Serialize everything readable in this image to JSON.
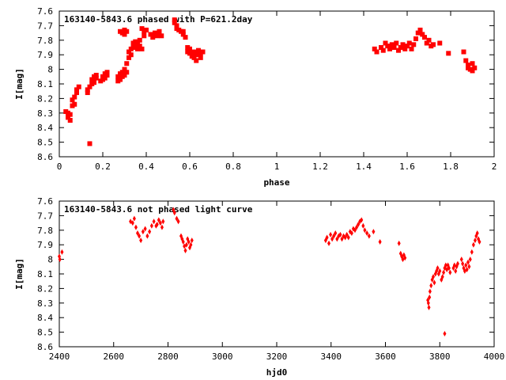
{
  "chart_data": [
    {
      "type": "scatter",
      "title": "163140-5843.6 phased with P=621.2day",
      "xlabel": "phase",
      "ylabel": "I[mag]",
      "xlim": [
        0,
        2
      ],
      "ylim": [
        7.6,
        8.6
      ],
      "y_inverted": true,
      "grid": false,
      "marker_color": "#ff0000",
      "xticks": [
        "0",
        "0.2",
        "0.4",
        "0.6",
        "0.8",
        "1",
        "1.2",
        "1.4",
        "1.6",
        "1.8",
        "2"
      ],
      "yticks": [
        "7.6",
        "7.7",
        "7.8",
        "7.9",
        "8",
        "8.1",
        "8.2",
        "8.3",
        "8.4",
        "8.5",
        "8.6"
      ],
      "points": [
        [
          0.03,
          8.29
        ],
        [
          0.04,
          8.3
        ],
        [
          0.04,
          8.33
        ],
        [
          0.05,
          8.35
        ],
        [
          0.05,
          8.31
        ],
        [
          0.06,
          8.25
        ],
        [
          0.06,
          8.21
        ],
        [
          0.07,
          8.24
        ],
        [
          0.07,
          8.19
        ],
        [
          0.08,
          8.14
        ],
        [
          0.08,
          8.16
        ],
        [
          0.09,
          8.12
        ],
        [
          0.13,
          8.14
        ],
        [
          0.13,
          8.16
        ],
        [
          0.14,
          8.12
        ],
        [
          0.14,
          8.51
        ],
        [
          0.15,
          8.1
        ],
        [
          0.15,
          8.07
        ],
        [
          0.16,
          8.05
        ],
        [
          0.16,
          8.09
        ],
        [
          0.17,
          8.04
        ],
        [
          0.17,
          8.06
        ],
        [
          0.19,
          8.08
        ],
        [
          0.2,
          8.05
        ],
        [
          0.2,
          8.07
        ],
        [
          0.21,
          8.03
        ],
        [
          0.21,
          8.06
        ],
        [
          0.22,
          8.02
        ],
        [
          0.22,
          8.04
        ],
        [
          0.27,
          8.08
        ],
        [
          0.27,
          8.05
        ],
        [
          0.28,
          8.03
        ],
        [
          0.28,
          8.07
        ],
        [
          0.29,
          8.02
        ],
        [
          0.29,
          8.05
        ],
        [
          0.3,
          8.0
        ],
        [
          0.3,
          8.04
        ],
        [
          0.31,
          8.02
        ],
        [
          0.28,
          7.74
        ],
        [
          0.29,
          7.75
        ],
        [
          0.3,
          7.73
        ],
        [
          0.31,
          7.74
        ],
        [
          0.3,
          7.76
        ],
        [
          0.31,
          7.96
        ],
        [
          0.32,
          7.92
        ],
        [
          0.32,
          7.88
        ],
        [
          0.33,
          7.9
        ],
        [
          0.33,
          7.86
        ],
        [
          0.34,
          7.82
        ],
        [
          0.34,
          7.85
        ],
        [
          0.35,
          7.81
        ],
        [
          0.36,
          7.83
        ],
        [
          0.36,
          7.86
        ],
        [
          0.37,
          7.84
        ],
        [
          0.37,
          7.8
        ],
        [
          0.38,
          7.86
        ],
        [
          0.38,
          7.72
        ],
        [
          0.39,
          7.74
        ],
        [
          0.4,
          7.73
        ],
        [
          0.39,
          7.77
        ],
        [
          0.42,
          7.76
        ],
        [
          0.43,
          7.78
        ],
        [
          0.44,
          7.75
        ],
        [
          0.45,
          7.77
        ],
        [
          0.46,
          7.74
        ],
        [
          0.46,
          7.76
        ],
        [
          0.47,
          7.77
        ],
        [
          0.53,
          7.66
        ],
        [
          0.53,
          7.68
        ],
        [
          0.54,
          7.7
        ],
        [
          0.54,
          7.72
        ],
        [
          0.55,
          7.73
        ],
        [
          0.56,
          7.74
        ],
        [
          0.57,
          7.74
        ],
        [
          0.57,
          7.76
        ],
        [
          0.58,
          7.78
        ],
        [
          0.59,
          7.85
        ],
        [
          0.59,
          7.88
        ],
        [
          0.6,
          7.86
        ],
        [
          0.6,
          7.89
        ],
        [
          0.61,
          7.91
        ],
        [
          0.62,
          7.88
        ],
        [
          0.62,
          7.92
        ],
        [
          0.63,
          7.94
        ],
        [
          0.63,
          7.9
        ],
        [
          0.64,
          7.87
        ],
        [
          0.65,
          7.89
        ],
        [
          0.65,
          7.92
        ],
        [
          0.66,
          7.88
        ],
        [
          1.45,
          7.86
        ],
        [
          1.46,
          7.88
        ],
        [
          1.48,
          7.85
        ],
        [
          1.49,
          7.87
        ],
        [
          1.5,
          7.82
        ],
        [
          1.51,
          7.84
        ],
        [
          1.52,
          7.86
        ],
        [
          1.53,
          7.83
        ],
        [
          1.54,
          7.85
        ],
        [
          1.55,
          7.82
        ],
        [
          1.56,
          7.87
        ],
        [
          1.57,
          7.85
        ],
        [
          1.58,
          7.83
        ],
        [
          1.59,
          7.86
        ],
        [
          1.6,
          7.84
        ],
        [
          1.61,
          7.82
        ],
        [
          1.62,
          7.86
        ],
        [
          1.63,
          7.83
        ],
        [
          1.64,
          7.79
        ],
        [
          1.65,
          7.75
        ],
        [
          1.66,
          7.73
        ],
        [
          1.67,
          7.76
        ],
        [
          1.68,
          7.78
        ],
        [
          1.69,
          7.82
        ],
        [
          1.7,
          7.8
        ],
        [
          1.71,
          7.84
        ],
        [
          1.72,
          7.83
        ],
        [
          1.75,
          7.82
        ],
        [
          1.79,
          7.89
        ],
        [
          1.86,
          7.88
        ],
        [
          1.87,
          7.94
        ],
        [
          1.88,
          7.97
        ],
        [
          1.88,
          7.99
        ],
        [
          1.89,
          8.0
        ],
        [
          1.9,
          7.96
        ],
        [
          1.9,
          8.01
        ],
        [
          1.91,
          7.99
        ]
      ]
    },
    {
      "type": "scatter",
      "title": "163140-5843.6 not phased light curve",
      "xlabel": "hjd0",
      "ylabel": "I[mag]",
      "xlim": [
        2400,
        4000
      ],
      "ylim": [
        7.6,
        8.6
      ],
      "y_inverted": true,
      "grid": false,
      "marker_color": "#ff0000",
      "xticks": [
        "2400",
        "2600",
        "2800",
        "3000",
        "3200",
        "3400",
        "3600",
        "3800",
        "4000"
      ],
      "yticks": [
        "7.6",
        "7.7",
        "7.8",
        "7.9",
        "8",
        "8.1",
        "8.2",
        "8.3",
        "8.4",
        "8.5",
        "8.6"
      ],
      "points": [
        [
          2400,
          7.98
        ],
        [
          2402,
          8.0
        ],
        [
          2410,
          7.95
        ],
        [
          2662,
          7.74
        ],
        [
          2670,
          7.75
        ],
        [
          2676,
          7.72
        ],
        [
          2682,
          7.78
        ],
        [
          2688,
          7.82
        ],
        [
          2694,
          7.84
        ],
        [
          2700,
          7.87
        ],
        [
          2708,
          7.81
        ],
        [
          2716,
          7.79
        ],
        [
          2724,
          7.84
        ],
        [
          2732,
          7.81
        ],
        [
          2740,
          7.77
        ],
        [
          2748,
          7.74
        ],
        [
          2756,
          7.77
        ],
        [
          2760,
          7.76
        ],
        [
          2766,
          7.73
        ],
        [
          2772,
          7.75
        ],
        [
          2778,
          7.78
        ],
        [
          2782,
          7.74
        ],
        [
          2820,
          7.66
        ],
        [
          2824,
          7.68
        ],
        [
          2832,
          7.72
        ],
        [
          2838,
          7.74
        ],
        [
          2848,
          7.84
        ],
        [
          2852,
          7.86
        ],
        [
          2856,
          7.88
        ],
        [
          2860,
          7.91
        ],
        [
          2864,
          7.94
        ],
        [
          2868,
          7.9
        ],
        [
          2872,
          7.86
        ],
        [
          2876,
          7.88
        ],
        [
          2880,
          7.92
        ],
        [
          2884,
          7.9
        ],
        [
          2888,
          7.87
        ],
        [
          3380,
          7.87
        ],
        [
          3385,
          7.85
        ],
        [
          3392,
          7.89
        ],
        [
          3398,
          7.83
        ],
        [
          3404,
          7.86
        ],
        [
          3410,
          7.84
        ],
        [
          3416,
          7.82
        ],
        [
          3422,
          7.86
        ],
        [
          3428,
          7.84
        ],
        [
          3434,
          7.83
        ],
        [
          3440,
          7.86
        ],
        [
          3446,
          7.84
        ],
        [
          3452,
          7.85
        ],
        [
          3458,
          7.83
        ],
        [
          3464,
          7.85
        ],
        [
          3470,
          7.81
        ],
        [
          3476,
          7.82
        ],
        [
          3482,
          7.79
        ],
        [
          3488,
          7.8
        ],
        [
          3494,
          7.78
        ],
        [
          3500,
          7.76
        ],
        [
          3506,
          7.74
        ],
        [
          3512,
          7.73
        ],
        [
          3518,
          7.77
        ],
        [
          3524,
          7.8
        ],
        [
          3532,
          7.82
        ],
        [
          3540,
          7.84
        ],
        [
          3556,
          7.81
        ],
        [
          3580,
          7.88
        ],
        [
          3650,
          7.89
        ],
        [
          3656,
          7.96
        ],
        [
          3660,
          7.98
        ],
        [
          3664,
          8.0
        ],
        [
          3668,
          7.97
        ],
        [
          3672,
          7.99
        ],
        [
          3756,
          8.28
        ],
        [
          3758,
          8.3
        ],
        [
          3760,
          8.33
        ],
        [
          3762,
          8.26
        ],
        [
          3764,
          8.22
        ],
        [
          3768,
          8.18
        ],
        [
          3772,
          8.14
        ],
        [
          3776,
          8.12
        ],
        [
          3780,
          8.16
        ],
        [
          3784,
          8.1
        ],
        [
          3788,
          8.08
        ],
        [
          3792,
          8.06
        ],
        [
          3796,
          8.1
        ],
        [
          3800,
          8.08
        ],
        [
          3806,
          8.14
        ],
        [
          3810,
          8.12
        ],
        [
          3814,
          8.09
        ],
        [
          3818,
          8.06
        ],
        [
          3822,
          8.04
        ],
        [
          3826,
          8.07
        ],
        [
          3830,
          8.04
        ],
        [
          3834,
          8.06
        ],
        [
          3838,
          8.09
        ],
        [
          3818,
          8.51
        ],
        [
          3850,
          8.06
        ],
        [
          3854,
          8.04
        ],
        [
          3858,
          8.08
        ],
        [
          3862,
          8.05
        ],
        [
          3866,
          8.03
        ],
        [
          3880,
          8.0
        ],
        [
          3884,
          8.03
        ],
        [
          3888,
          8.06
        ],
        [
          3892,
          8.08
        ],
        [
          3896,
          8.04
        ],
        [
          3900,
          8.07
        ],
        [
          3904,
          8.02
        ],
        [
          3908,
          8.05
        ],
        [
          3912,
          8.0
        ],
        [
          3918,
          7.95
        ],
        [
          3924,
          7.9
        ],
        [
          3930,
          7.87
        ],
        [
          3934,
          7.84
        ],
        [
          3938,
          7.82
        ],
        [
          3942,
          7.86
        ],
        [
          3946,
          7.88
        ]
      ]
    }
  ]
}
